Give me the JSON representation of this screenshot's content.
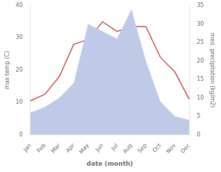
{
  "chart_data": {
    "type": "line",
    "categories": [
      "Jan",
      "Feb",
      "Mar",
      "Apr",
      "May",
      "Jun",
      "Jul",
      "Aug",
      "Sep",
      "Oct",
      "Nov",
      "Dec"
    ],
    "series": [
      {
        "type": "area",
        "color": "#bfc9e8",
        "axis": "y2",
        "values": [
          6,
          7.5,
          10,
          14,
          30,
          28,
          26,
          34,
          20,
          9,
          5,
          4
        ]
      },
      {
        "type": "line",
        "color": "#c0504d",
        "values": [
          10.5,
          12.5,
          18.0,
          28.0,
          29.5,
          35.0,
          32.0,
          33.5,
          33.5,
          24.0,
          19.5,
          11.0
        ]
      }
    ],
    "xlabel": "date (month)",
    "ylabel": "max temp (C)",
    "y2label": "med. precipitation (kg/m2)",
    "ylim": [
      0,
      40
    ],
    "yticks": [
      0,
      10,
      20,
      30,
      40
    ],
    "y2lim": [
      0,
      35
    ],
    "y2ticks": [
      0,
      5,
      10,
      15,
      20,
      25,
      30,
      35
    ],
    "grid": false
  }
}
